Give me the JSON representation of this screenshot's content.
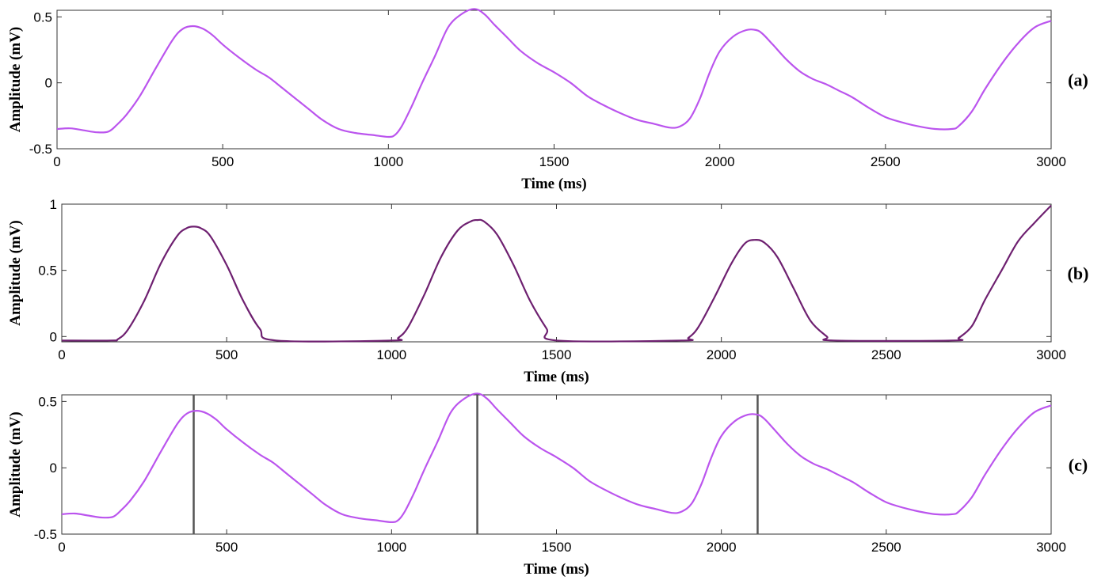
{
  "chart_data": [
    {
      "type": "line",
      "panel_label": "(a)",
      "xlabel": "Time (ms)",
      "ylabel": "Amplitude  (mV)",
      "xlim": [
        0,
        3000
      ],
      "ylim": [
        -0.5,
        0.55
      ],
      "xticks": [
        0,
        500,
        1000,
        1500,
        2000,
        2500,
        3000
      ],
      "yticks": [
        -0.5,
        0,
        0.5
      ],
      "ytick_labels": [
        "-0.5",
        "0",
        "0.5"
      ],
      "grid": false,
      "series": [
        {
          "color": "#bb55ee",
          "x": [
            0,
            40,
            80,
            120,
            155,
            180,
            210,
            250,
            300,
            350,
            380,
            410,
            440,
            470,
            500,
            550,
            600,
            640,
            680,
            720,
            760,
            800,
            850,
            900,
            950,
            1000,
            1020,
            1040,
            1070,
            1100,
            1140,
            1180,
            1220,
            1260,
            1290,
            1320,
            1360,
            1400,
            1450,
            1500,
            1550,
            1600,
            1650,
            1700,
            1750,
            1800,
            1850,
            1880,
            1910,
            1940,
            1970,
            2000,
            2040,
            2080,
            2110,
            2130,
            2160,
            2200,
            2240,
            2280,
            2320,
            2360,
            2400,
            2450,
            2500,
            2550,
            2600,
            2650,
            2700,
            2720,
            2760,
            2800,
            2850,
            2900,
            2950,
            3000
          ],
          "y": [
            -0.35,
            -0.345,
            -0.36,
            -0.375,
            -0.37,
            -0.32,
            -0.24,
            -0.1,
            0.12,
            0.33,
            0.41,
            0.43,
            0.41,
            0.36,
            0.29,
            0.19,
            0.1,
            0.04,
            -0.04,
            -0.12,
            -0.2,
            -0.28,
            -0.35,
            -0.38,
            -0.395,
            -0.41,
            -0.395,
            -0.33,
            -0.18,
            -0.01,
            0.2,
            0.42,
            0.52,
            0.56,
            0.52,
            0.44,
            0.34,
            0.24,
            0.15,
            0.08,
            0.0,
            -0.1,
            -0.17,
            -0.23,
            -0.28,
            -0.31,
            -0.34,
            -0.33,
            -0.27,
            -0.12,
            0.08,
            0.24,
            0.35,
            0.4,
            0.4,
            0.37,
            0.29,
            0.18,
            0.09,
            0.03,
            -0.01,
            -0.06,
            -0.11,
            -0.19,
            -0.26,
            -0.3,
            -0.33,
            -0.35,
            -0.35,
            -0.33,
            -0.22,
            -0.05,
            0.14,
            0.3,
            0.42,
            0.47
          ]
        }
      ]
    },
    {
      "type": "line",
      "panel_label": "(b)",
      "xlabel": "Time (ms)",
      "ylabel": "Amplitude  (mV)",
      "xlim": [
        0,
        3000
      ],
      "ylim": [
        -0.04,
        1.0
      ],
      "xticks": [
        0,
        500,
        1000,
        1500,
        2000,
        2500,
        3000
      ],
      "yticks": [
        0,
        0.5,
        1
      ],
      "ytick_labels": [
        "0",
        "0.5",
        "1"
      ],
      "grid": false,
      "series": [
        {
          "color": "#6e2070",
          "x": [
            0,
            150,
            170,
            200,
            250,
            300,
            350,
            380,
            400,
            420,
            450,
            500,
            550,
            600,
            650,
            1000,
            1020,
            1050,
            1100,
            1150,
            1200,
            1240,
            1260,
            1280,
            1320,
            1370,
            1420,
            1470,
            1500,
            1880,
            1900,
            1930,
            1980,
            2030,
            2070,
            2100,
            2130,
            2170,
            2220,
            2270,
            2320,
            2340,
            2700,
            2720,
            2760,
            2800,
            2850,
            2900,
            2950,
            3000
          ],
          "y": [
            -0.03,
            -0.03,
            -0.02,
            0.05,
            0.27,
            0.55,
            0.76,
            0.82,
            0.83,
            0.82,
            0.76,
            0.54,
            0.27,
            0.06,
            -0.03,
            -0.03,
            -0.01,
            0.07,
            0.32,
            0.6,
            0.8,
            0.87,
            0.88,
            0.87,
            0.77,
            0.54,
            0.27,
            0.06,
            -0.03,
            -0.03,
            -0.01,
            0.07,
            0.3,
            0.55,
            0.7,
            0.73,
            0.71,
            0.6,
            0.36,
            0.12,
            0.0,
            -0.03,
            -0.03,
            -0.01,
            0.08,
            0.28,
            0.5,
            0.72,
            0.86,
            0.99
          ]
        }
      ]
    },
    {
      "type": "line",
      "panel_label": "(c)",
      "xlabel": "Time (ms)",
      "ylabel": "Amplitude  (mV)",
      "xlim": [
        0,
        3000
      ],
      "ylim": [
        -0.5,
        0.55
      ],
      "xticks": [
        0,
        500,
        1000,
        1500,
        2000,
        2500,
        3000
      ],
      "yticks": [
        -0.5,
        0,
        0.5
      ],
      "ytick_labels": [
        "-0.5",
        "0",
        "0.5"
      ],
      "grid": false,
      "vlines": [
        400,
        1260,
        2110
      ],
      "vline_color": "#555555",
      "series": [
        {
          "color": "#bb55ee",
          "x": [
            0,
            40,
            80,
            120,
            155,
            180,
            210,
            250,
            300,
            350,
            380,
            410,
            440,
            470,
            500,
            550,
            600,
            640,
            680,
            720,
            760,
            800,
            850,
            900,
            950,
            1000,
            1020,
            1040,
            1070,
            1100,
            1140,
            1180,
            1220,
            1260,
            1290,
            1320,
            1360,
            1400,
            1450,
            1500,
            1550,
            1600,
            1650,
            1700,
            1750,
            1800,
            1850,
            1880,
            1910,
            1940,
            1970,
            2000,
            2040,
            2080,
            2110,
            2130,
            2160,
            2200,
            2240,
            2280,
            2320,
            2360,
            2400,
            2450,
            2500,
            2550,
            2600,
            2650,
            2700,
            2720,
            2760,
            2800,
            2850,
            2900,
            2950,
            3000
          ],
          "y": [
            -0.35,
            -0.345,
            -0.36,
            -0.375,
            -0.37,
            -0.32,
            -0.24,
            -0.1,
            0.12,
            0.33,
            0.41,
            0.43,
            0.41,
            0.36,
            0.29,
            0.19,
            0.1,
            0.04,
            -0.04,
            -0.12,
            -0.2,
            -0.28,
            -0.35,
            -0.38,
            -0.395,
            -0.41,
            -0.395,
            -0.33,
            -0.18,
            -0.01,
            0.2,
            0.42,
            0.52,
            0.56,
            0.52,
            0.44,
            0.34,
            0.24,
            0.15,
            0.08,
            0.0,
            -0.1,
            -0.17,
            -0.23,
            -0.28,
            -0.31,
            -0.34,
            -0.33,
            -0.27,
            -0.12,
            0.08,
            0.24,
            0.35,
            0.4,
            0.4,
            0.37,
            0.29,
            0.18,
            0.09,
            0.03,
            -0.01,
            -0.06,
            -0.11,
            -0.19,
            -0.26,
            -0.3,
            -0.33,
            -0.35,
            -0.35,
            -0.33,
            -0.22,
            -0.05,
            0.14,
            0.3,
            0.42,
            0.47
          ]
        }
      ]
    }
  ]
}
